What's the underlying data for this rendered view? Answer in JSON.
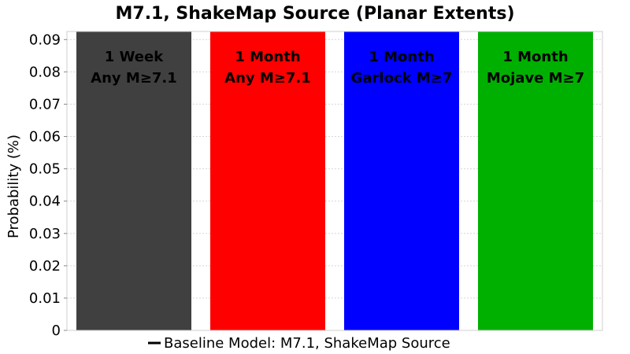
{
  "chart_data": {
    "type": "bar",
    "title": "M7.1, ShakeMap Source (Planar Extents)",
    "xlabel": "",
    "ylabel": "Probability (%)",
    "ylim": [
      0,
      0.0925
    ],
    "yticks": [
      "0",
      "0.01",
      "0.02",
      "0.03",
      "0.04",
      "0.05",
      "0.06",
      "0.07",
      "0.08",
      "0.09"
    ],
    "grid": true,
    "legend_position": "bottom",
    "legend": "Baseline Model: M7.1, ShakeMap Source",
    "categories": [
      [
        "1 Week",
        "Any M≥7.1"
      ],
      [
        "1 Month",
        "Any M≥7.1"
      ],
      [
        "1 Month",
        "Garlock M≥7"
      ],
      [
        "1 Month",
        "Mojave M≥7"
      ]
    ],
    "values": [
      0.0925,
      0.0925,
      0.0925,
      0.0925
    ],
    "colors": [
      "#404040",
      "#ff0000",
      "#0000ff",
      "#00b000"
    ],
    "baseline_color": "#000000"
  }
}
